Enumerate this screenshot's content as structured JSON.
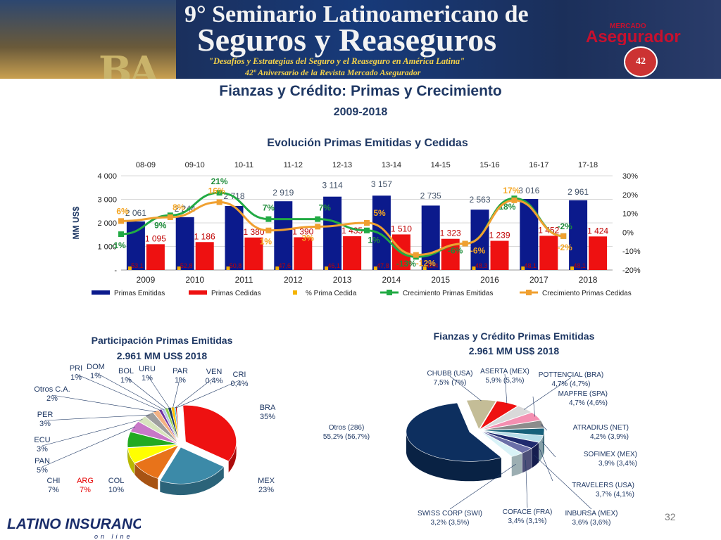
{
  "banner": {
    "line1": "9° Seminario Latinoamericano de",
    "line2": "Seguros y Reaseguros",
    "line3": "\"Desafíos y Estrategias del Seguro y el Reaseguro en América Latina\"",
    "line4": "42º Aniversario de la Revista Mercado Asegurador",
    "badge": "42"
  },
  "page": {
    "title": "Fianzas y Crédito: Primas y Crecimiento",
    "subtitle": "2009-2018",
    "page_number": "32",
    "footer_logo": {
      "name": "LATINO INSURANCE",
      "tagline": "on line"
    },
    "brand_logo": "Mercado Asegurador"
  },
  "colors": {
    "emitidas": "#0b1a8c",
    "cedidas": "#ee1111",
    "pct_cedida": "#f5b400",
    "crec_emitidas": "#22aa44",
    "crec_cedidas": "#f0a030",
    "navy_text": "#1f3864"
  },
  "chart_data": [
    {
      "type": "bar",
      "title": "Evolución Primas Emitidas y Cedidas",
      "ylabel": "MM US$",
      "categories": [
        "2009",
        "2010",
        "2011",
        "2012",
        "2013",
        "2014",
        "2015",
        "2016",
        "2017",
        "2018"
      ],
      "top_categories": [
        "08-09",
        "09-10",
        "10-11",
        "11-12",
        "12-13",
        "13-14",
        "14-15",
        "15-16",
        "16-17",
        "17-18"
      ],
      "ylim": [
        0,
        4000
      ],
      "yticks": [
        "-",
        "1 000",
        "2 000",
        "3 000",
        "4 000"
      ],
      "y2lim": [
        -20,
        30
      ],
      "y2ticks": [
        "-20%",
        "-10%",
        "0%",
        "10%",
        "20%",
        "30%"
      ],
      "series": [
        {
          "name": "Primas Emitidas",
          "kind": "bar",
          "values": [
            2061,
            2244,
            2718,
            2919,
            3114,
            3157,
            2735,
            2563,
            3016,
            2961
          ],
          "labels": [
            "2 061",
            "2 244",
            "2 718",
            "2 919",
            "3 114",
            "3 157",
            "2 735",
            "2 563",
            "3 016",
            "2 961"
          ]
        },
        {
          "name": "Primas Cedidas",
          "kind": "bar",
          "values": [
            1095,
            1186,
            1380,
            1390,
            1435,
            1510,
            1323,
            1239,
            1452,
            1424
          ],
          "labels": [
            "1 095",
            "1 186",
            "1 380",
            "1 390",
            "1 435",
            "1 510",
            "1 323",
            "1 239",
            "1 452",
            "1 424"
          ]
        },
        {
          "name": "% Prima Cedida",
          "kind": "marker",
          "values": [
            53.1,
            52.8,
            50.8,
            47.6,
            46.1,
            47.8,
            48.4,
            48.3,
            48.1,
            48.1
          ],
          "labels": [
            "53,1",
            "52,8",
            "50,8",
            "47,6",
            "46,1",
            "47,8",
            "48,4",
            "48,3",
            "48,1",
            "48,1"
          ]
        },
        {
          "name": "Crecimiento Primas Emitidas",
          "kind": "line",
          "values": [
            -1,
            9,
            21,
            7,
            7,
            1,
            -13,
            -6,
            18,
            -2
          ],
          "labels": [
            "-1%",
            "9%",
            "21%",
            "7%",
            "7%",
            "1%",
            "-13%",
            "-6%",
            "18%",
            "-2%"
          ]
        },
        {
          "name": "Crecimiento Primas Cedidas",
          "kind": "line",
          "values": [
            6,
            8,
            16,
            1,
            3,
            5,
            -12,
            -6,
            17,
            -2
          ],
          "labels": [
            "6%",
            "8%",
            "16%",
            "1%",
            "3%",
            "5%",
            "-12%",
            "-6%",
            "17%",
            "-2%"
          ]
        }
      ]
    },
    {
      "type": "pie",
      "title": "Participación Primas Emitidas",
      "subtitle": "2.961 MM US$  2018",
      "slices": [
        {
          "label": "BRA",
          "pct": "35%",
          "value": 35,
          "color": "#ee1111"
        },
        {
          "label": "MEX",
          "pct": "23%",
          "value": 23,
          "color": "#3c8aa8"
        },
        {
          "label": "COL",
          "pct": "10%",
          "value": 10,
          "color": "#e8731a"
        },
        {
          "label": "ARG",
          "pct": "7%",
          "value": 7,
          "color": "#ffff00"
        },
        {
          "label": "CHI",
          "pct": "7%",
          "value": 7,
          "color": "#22aa22"
        },
        {
          "label": "PAN",
          "pct": "5%",
          "value": 5,
          "color": "#c878c8"
        },
        {
          "label": "ECU",
          "pct": "3%",
          "value": 3,
          "color": "#d7e4bd"
        },
        {
          "label": "PER",
          "pct": "3%",
          "value": 3,
          "color": "#9e9e9e"
        },
        {
          "label": "Otros C.A.",
          "pct": "2%",
          "value": 2,
          "color": "#f4b183"
        },
        {
          "label": "PRI",
          "pct": "1%",
          "value": 1,
          "color": "#7030a0"
        },
        {
          "label": "DOM",
          "pct": "1%",
          "value": 1,
          "color": "#b4c7e7"
        },
        {
          "label": "BOL",
          "pct": "1%",
          "value": 1,
          "color": "#92d050"
        },
        {
          "label": "URU",
          "pct": "1%",
          "value": 1,
          "color": "#1f3864"
        },
        {
          "label": "PAR",
          "pct": "1%",
          "value": 1,
          "color": "#ffc000"
        },
        {
          "label": "VEN",
          "pct": "0,4%",
          "value": 0.4,
          "color": "#00b0f0"
        },
        {
          "label": "CRI",
          "pct": "0,4%",
          "value": 0.4,
          "color": "#c00000"
        }
      ]
    },
    {
      "type": "pie",
      "title": "Fianzas y Crédito Primas Emitidas",
      "subtitle": "2.961 MM US$ 2018",
      "slices": [
        {
          "label": "Otros (286)",
          "pct": "55,2% (56,7%)",
          "value": 55.2,
          "color": "#0d2f5f"
        },
        {
          "label": "CHUBB (USA)",
          "pct": "7,5% (7%)",
          "value": 7.5,
          "color": "#c4bd97"
        },
        {
          "label": "ASERTA (MEX)",
          "pct": "5,9% (5,3%)",
          "value": 5.9,
          "color": "#ee1111"
        },
        {
          "label": "POTTENCIAL (BRA)",
          "pct": "4,7% (4,7%)",
          "value": 4.7,
          "color": "#d9d9d9"
        },
        {
          "label": "MAPFRE (SPA)",
          "pct": "4,7% (4,6%)",
          "value": 4.7,
          "color": "#f48fb1"
        },
        {
          "label": "ATRADIUS (NET)",
          "pct": "4,2% (3,9%)",
          "value": 4.2,
          "color": "#8c8c8c"
        },
        {
          "label": "SOFIMEX (MEX)",
          "pct": "3,9% (3,4%)",
          "value": 3.9,
          "color": "#17607a"
        },
        {
          "label": "TRAVELERS (USA)",
          "pct": "3,7% (4,1%)",
          "value": 3.7,
          "color": "#b7dde8"
        },
        {
          "label": "INBURSA (MEX)",
          "pct": "3,6% (3,6%)",
          "value": 3.6,
          "color": "#1f2a6e"
        },
        {
          "label": "COFACE (FRA)",
          "pct": "3,4% (3,1%)",
          "value": 3.4,
          "color": "#6b6fa8"
        },
        {
          "label": "SWISS CORP (SWI)",
          "pct": "3,2% (3,5%)",
          "value": 3.2,
          "color": "#d9f2f7"
        }
      ]
    }
  ]
}
